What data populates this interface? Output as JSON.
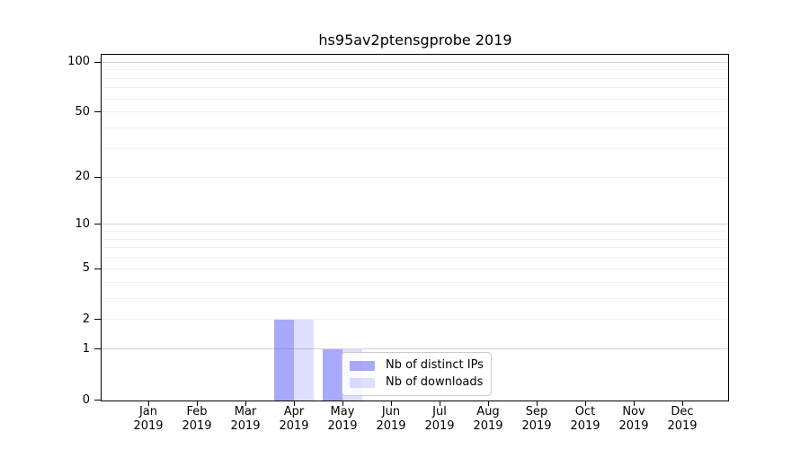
{
  "chart_data": {
    "type": "bar",
    "title": "hs95av2ptensgprobe 2019",
    "categories": [
      "Jan 2019",
      "Feb 2019",
      "Mar 2019",
      "Apr 2019",
      "May 2019",
      "Jun 2019",
      "Jul 2019",
      "Aug 2019",
      "Sep 2019",
      "Oct 2019",
      "Nov 2019",
      "Dec 2019"
    ],
    "series": [
      {
        "name": "Nb of distinct IPs",
        "color": "rgba(60,60,245,0.44)",
        "solid_color": "#a8a8f6",
        "values": [
          0,
          0,
          0,
          2,
          1,
          0,
          0,
          0,
          0,
          0,
          0,
          0
        ]
      },
      {
        "name": "Nb of downloads",
        "color": "rgba(60,60,245,0.17)",
        "solid_color": "#dedefb",
        "values": [
          0,
          0,
          0,
          2,
          1,
          0,
          0,
          0,
          0,
          0,
          0,
          0
        ]
      }
    ],
    "xlabel": "",
    "ylabel": "",
    "yscale": "log1p",
    "ylim": [
      0,
      110
    ],
    "yticks": [
      0,
      1,
      2,
      5,
      10,
      20,
      50,
      100
    ],
    "major_gridlines": [
      1,
      10,
      100
    ],
    "minor_gridlines": [
      2,
      3,
      4,
      5,
      6,
      7,
      8,
      9,
      20,
      30,
      40,
      50,
      60,
      70,
      80,
      90
    ],
    "grid": true,
    "legend_position": "lower right inside plot",
    "colors": {
      "major_grid": "#d3d3d3",
      "minor_grid": "#f0f0f0",
      "spine": "#000000",
      "text": "#000000"
    }
  }
}
